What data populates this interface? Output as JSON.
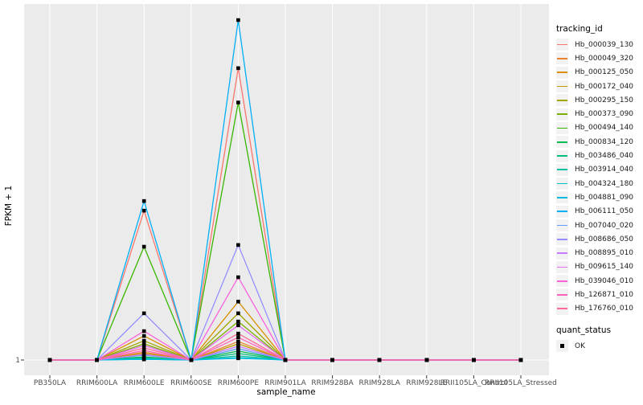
{
  "figure": {
    "background": "#ffffff",
    "panel_background": "#ebebeb",
    "gridline_color": "#ffffff",
    "tick_color": "#333333",
    "tick_label_color": "#4d4d4d"
  },
  "chart_data": {
    "type": "line",
    "title": "",
    "xlabel": "sample_name",
    "ylabel": "FPKM + 1",
    "y_tick_labels": [
      "1"
    ],
    "ylim": [
      1,
      100
    ],
    "grid": "major-white-on-gray",
    "legend_position": "right",
    "point_marker": "filled-square",
    "point_color": "#000000",
    "categories": [
      "PB350LA",
      "RRIM600LA",
      "RRIM600LE",
      "RRIM600SE",
      "RRIM600PE",
      "RRIM901LA",
      "RRIM928BA",
      "RRIM928LA",
      "RRIM928LE",
      "RRII105LA_Control",
      "RRII105LA_Stressed"
    ],
    "series": [
      {
        "name": "Hb_000039_130",
        "color": "#F8766D",
        "values": [
          1,
          1,
          44.5,
          1,
          86,
          1,
          1,
          1,
          1,
          1,
          1
        ]
      },
      {
        "name": "Hb_000049_320",
        "color": "#EA8331",
        "values": [
          1,
          1,
          3.3,
          1,
          6.4,
          1,
          1,
          1,
          1,
          1,
          1
        ]
      },
      {
        "name": "Hb_000125_050",
        "color": "#D89000",
        "values": [
          1,
          1,
          8,
          1,
          18,
          1,
          1,
          1,
          1,
          1,
          1
        ]
      },
      {
        "name": "Hb_000172_040",
        "color": "#C09B00",
        "values": [
          1,
          1,
          2.9,
          1,
          5.7,
          1,
          1,
          1,
          1,
          1,
          1
        ]
      },
      {
        "name": "Hb_000295_150",
        "color": "#A3A500",
        "values": [
          1,
          1,
          6.6,
          1,
          14.6,
          1,
          1,
          1,
          1,
          1,
          1
        ]
      },
      {
        "name": "Hb_000373_090",
        "color": "#7CAE00",
        "values": [
          1,
          1,
          5.7,
          1,
          12.2,
          1,
          1,
          1,
          1,
          1,
          1
        ]
      },
      {
        "name": "Hb_000494_140",
        "color": "#39B600",
        "values": [
          1,
          1,
          34,
          1,
          76,
          1,
          1,
          1,
          1,
          1,
          1
        ]
      },
      {
        "name": "Hb_000834_120",
        "color": "#00BB4E",
        "values": [
          1,
          1,
          1.9,
          1,
          3.6,
          1,
          1,
          1,
          1,
          1,
          1
        ]
      },
      {
        "name": "Hb_003486_040",
        "color": "#00BF7D",
        "values": [
          1,
          1,
          1.7,
          1,
          2.9,
          1,
          1,
          1,
          1,
          1,
          1
        ]
      },
      {
        "name": "Hb_003914_040",
        "color": "#00C1A3",
        "values": [
          1,
          1,
          1.5,
          1,
          2.2,
          1,
          1,
          1,
          1,
          1,
          1
        ]
      },
      {
        "name": "Hb_004324_180",
        "color": "#00BFC4",
        "values": [
          1,
          1,
          1.2,
          1,
          1.7,
          1,
          1,
          1,
          1,
          1,
          1
        ]
      },
      {
        "name": "Hb_004881_090",
        "color": "#00BAE0",
        "values": [
          1,
          1,
          1.2,
          1,
          1.5,
          1,
          1,
          1,
          1,
          1,
          1
        ]
      },
      {
        "name": "Hb_006111_050",
        "color": "#00B0F6",
        "values": [
          1,
          1,
          47.3,
          1,
          100,
          1,
          1,
          1,
          1,
          1,
          1
        ]
      },
      {
        "name": "Hb_007040_020",
        "color": "#619CFF",
        "values": [
          1,
          1,
          2.4,
          1,
          4.3,
          1,
          1,
          1,
          1,
          1,
          1
        ]
      },
      {
        "name": "Hb_008686_050",
        "color": "#9590FF",
        "values": [
          1,
          1,
          14.6,
          1,
          34.5,
          1,
          1,
          1,
          1,
          1,
          1
        ]
      },
      {
        "name": "Hb_008895_010",
        "color": "#C77CFF",
        "values": [
          1,
          1,
          2.6,
          1,
          5,
          1,
          1,
          1,
          1,
          1,
          1
        ]
      },
      {
        "name": "Hb_009615_140",
        "color": "#E76BF3",
        "values": [
          1,
          1,
          5.2,
          1,
          11.1,
          1,
          1,
          1,
          1,
          1,
          1
        ]
      },
      {
        "name": "Hb_039046_010",
        "color": "#FA62DB",
        "values": [
          1,
          1,
          9.4,
          1,
          25.1,
          1,
          1,
          1,
          1,
          1,
          1
        ]
      },
      {
        "name": "Hb_126871_010",
        "color": "#FF62BC",
        "values": [
          1,
          1,
          3.8,
          1,
          7.6,
          1,
          1,
          1,
          1,
          1,
          1
        ]
      },
      {
        "name": "Hb_176760_010",
        "color": "#FF6A98",
        "values": [
          1,
          1,
          4.5,
          1,
          8.7,
          1,
          1,
          1,
          1,
          1,
          1
        ]
      }
    ]
  },
  "legend": {
    "tracking": {
      "title": "tracking_id"
    },
    "quant": {
      "title": "quant_status",
      "items": [
        {
          "label": "OK"
        }
      ]
    }
  }
}
